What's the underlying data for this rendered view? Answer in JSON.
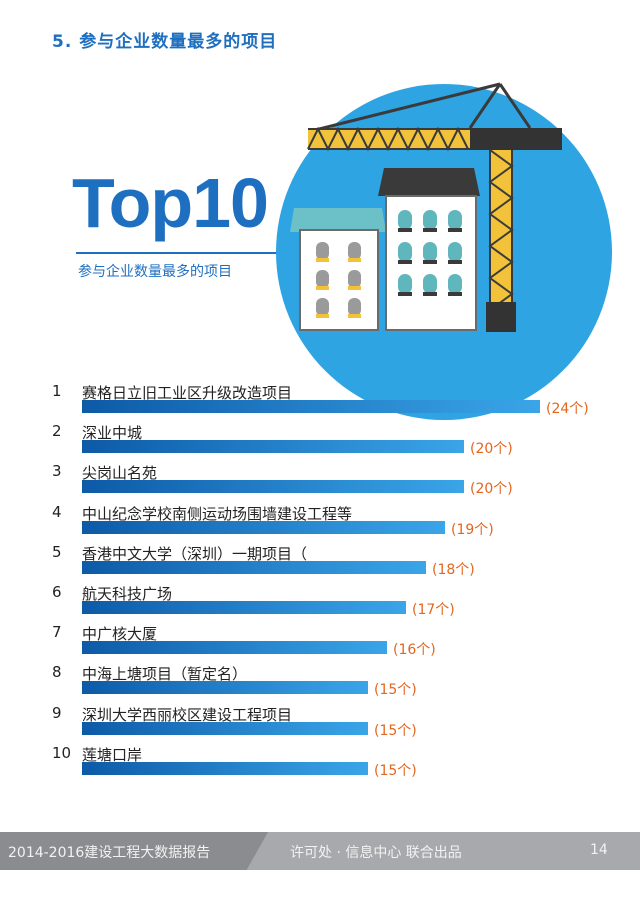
{
  "section": {
    "title": "5. 参与企业数量最多的项目"
  },
  "hero": {
    "big_title": "Top10",
    "subtitle": "参与企业数量最多的项目"
  },
  "ranking": {
    "max_value": 24,
    "items": [
      {
        "rank": "1",
        "name": "赛格日立旧工业区升级改造项目",
        "value": 24,
        "label": "(24个)"
      },
      {
        "rank": "2",
        "name": "深业中城",
        "value": 20,
        "label": "(20个)"
      },
      {
        "rank": "3",
        "name": "尖岗山名苑",
        "value": 20,
        "label": "(20个)"
      },
      {
        "rank": "4",
        "name": "中山纪念学校南侧运动场围墙建设工程等",
        "value": 19,
        "label": "(19个)"
      },
      {
        "rank": "5",
        "name": "香港中文大学（深圳）一期项目（",
        "value": 18,
        "label": "(18个)"
      },
      {
        "rank": "6",
        "name": "航天科技广场",
        "value": 17,
        "label": "(17个)"
      },
      {
        "rank": "7",
        "name": "中广核大厦",
        "value": 16,
        "label": "(16个)"
      },
      {
        "rank": "8",
        "name": "中海上塘项目（暂定名）",
        "value": 15,
        "label": "(15个)"
      },
      {
        "rank": "9",
        "name": "深圳大学西丽校区建设工程项目",
        "value": 15,
        "label": "(15个)"
      },
      {
        "rank": "10",
        "name": "莲塘口岸",
        "value": 15,
        "label": "(15个)"
      }
    ]
  },
  "footer": {
    "report": "2014-2016建设工程大数据报告",
    "publisher": "许可处 · 信息中心  联合出品",
    "page": "14"
  },
  "colors": {
    "accent": "#1f6fc0",
    "bar_start": "#0d5aa7",
    "bar_end": "#3aa5e8",
    "count": "#e3661f"
  }
}
